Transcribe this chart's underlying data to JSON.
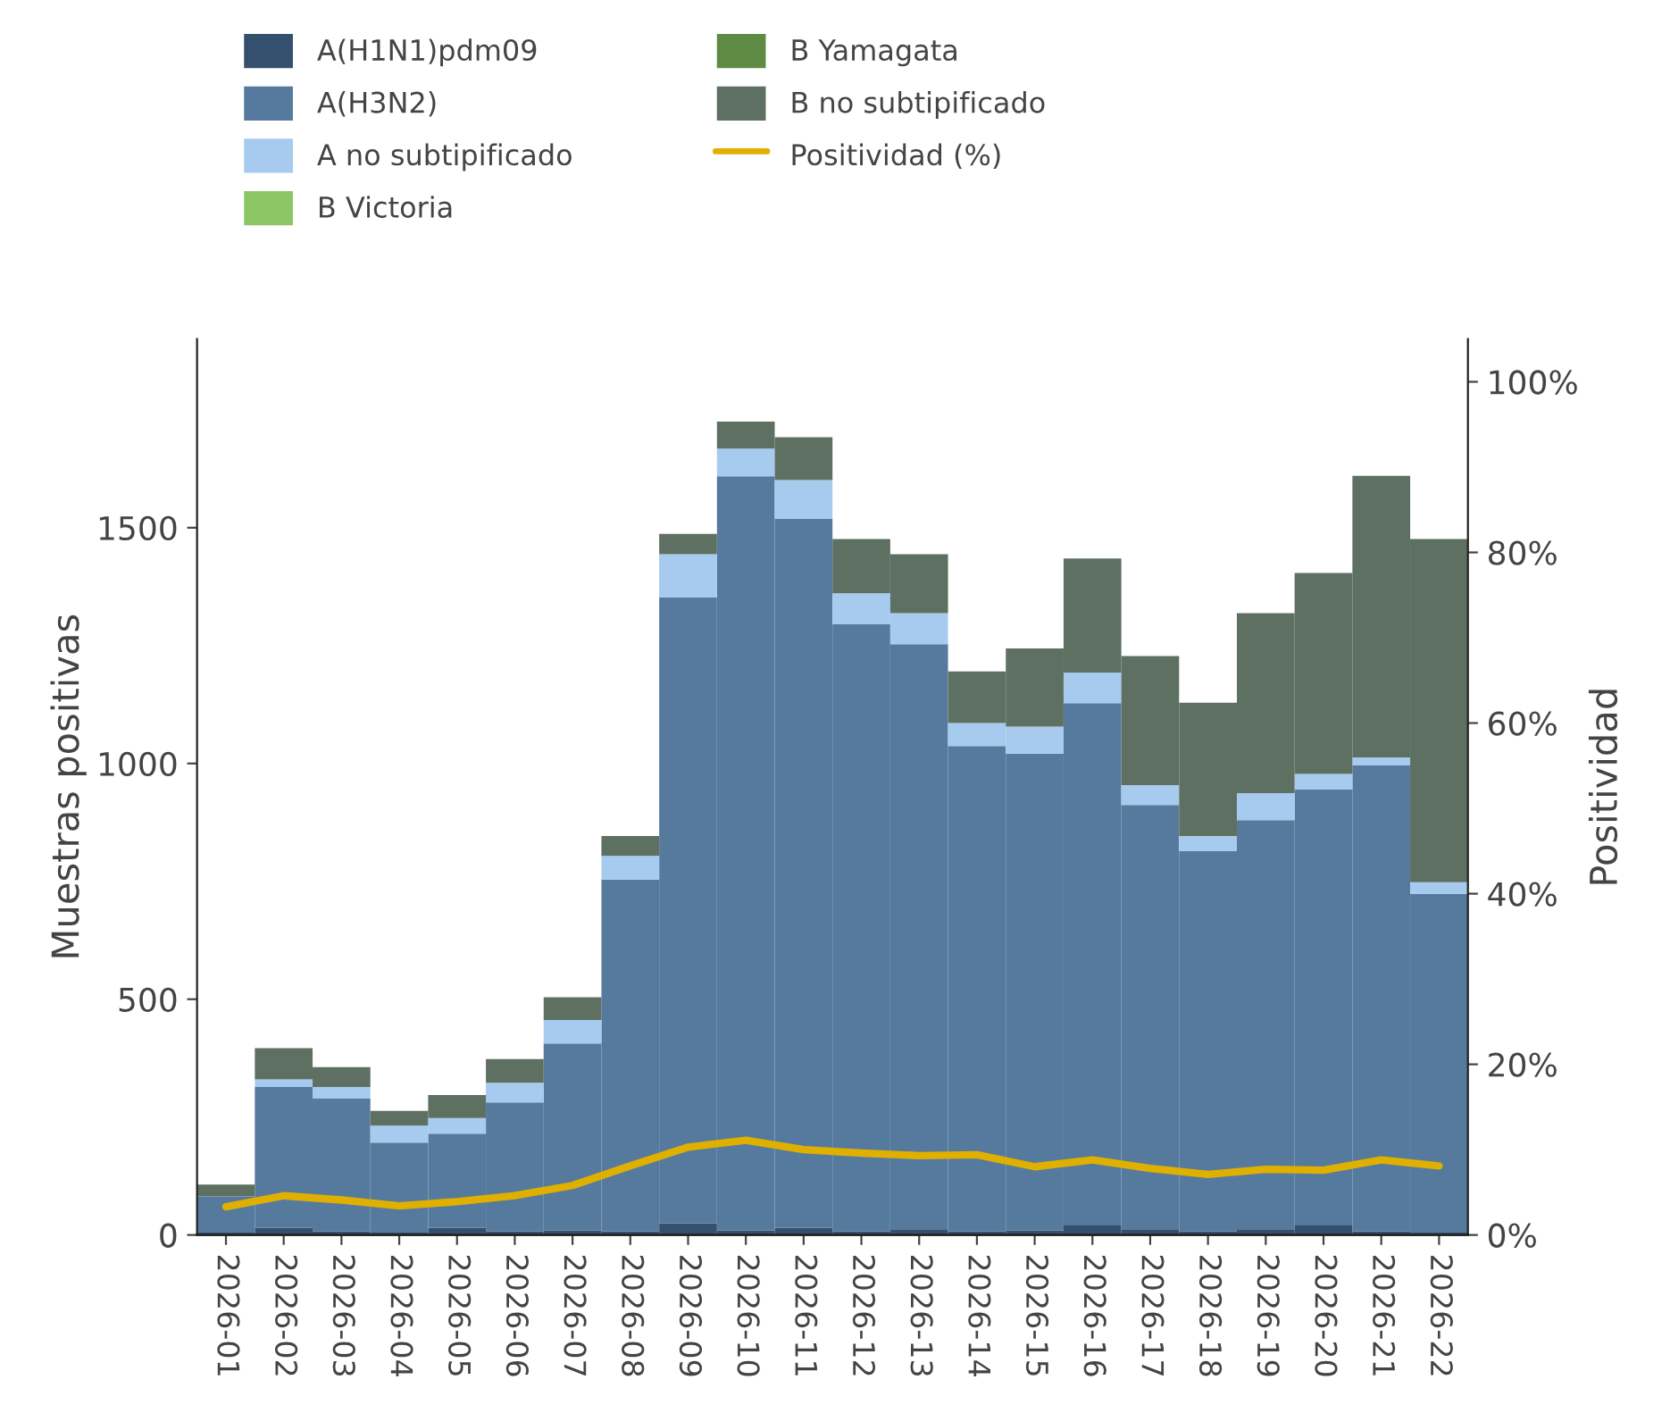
{
  "chart_data": {
    "type": "bar",
    "stacked": true,
    "ylabel": "Muestras positivas",
    "y2label": "Positividad",
    "categories": [
      "2026-01",
      "2026-02",
      "2026-03",
      "2026-04",
      "2026-05",
      "2026-06",
      "2026-07",
      "2026-08",
      "2026-09",
      "2026-10",
      "2026-11",
      "2026-12",
      "2026-13",
      "2026-14",
      "2026-15",
      "2026-16",
      "2026-17",
      "2026-18",
      "2026-19",
      "2026-20",
      "2026-21",
      "2026-22"
    ],
    "series": [
      {
        "name": "A(H1N1)pdm09",
        "color": "#34506e",
        "values": [
          5,
          15,
          8,
          5,
          15,
          8,
          10,
          8,
          25,
          10,
          15,
          8,
          12,
          8,
          10,
          20,
          12,
          8,
          12,
          20,
          8,
          5
        ]
      },
      {
        "name": "A(H3N2)",
        "color": "#557a9e",
        "values": [
          77,
          299,
          281,
          191,
          200,
          273,
          396,
          746,
          1327,
          1599,
          1504,
          1287,
          1241,
          1029,
          1011,
          1108,
          900,
          806,
          868,
          925,
          988,
          718
        ]
      },
      {
        "name": "A no subtipificado",
        "color": "#a6cbef",
        "values": [
          0,
          16,
          25,
          36,
          33,
          42,
          50,
          50,
          92,
          59,
          82,
          66,
          66,
          49,
          57,
          65,
          42,
          32,
          57,
          33,
          17,
          25
        ]
      },
      {
        "name": "B Victoria",
        "color": "#8cc665",
        "values": [
          0,
          0,
          0,
          0,
          0,
          0,
          0,
          0,
          0,
          0,
          0,
          0,
          0,
          0,
          0,
          0,
          0,
          0,
          0,
          0,
          0,
          0
        ]
      },
      {
        "name": "B Yamagata",
        "color": "#5f8a44",
        "values": [
          0,
          0,
          0,
          0,
          0,
          0,
          0,
          0,
          0,
          0,
          0,
          0,
          0,
          0,
          0,
          0,
          0,
          0,
          0,
          0,
          0,
          0
        ]
      },
      {
        "name": "B no subtipificado",
        "color": "#5e7062",
        "values": [
          25,
          66,
          42,
          31,
          49,
          50,
          48,
          42,
          43,
          57,
          91,
          115,
          125,
          109,
          166,
          242,
          274,
          283,
          382,
          426,
          597,
          728
        ]
      },
      {
        "name": "Positividad (%)",
        "color": "#e0b000",
        "type": "line",
        "axis": "y2",
        "values": [
          3.3,
          4.6,
          4.1,
          3.4,
          3.9,
          4.6,
          5.8,
          8.1,
          10.3,
          11.1,
          10.0,
          9.6,
          9.3,
          9.4,
          8.0,
          8.8,
          7.8,
          7.1,
          7.7,
          7.6,
          8.8,
          8.1
        ]
      }
    ],
    "ylim": [
      0,
      1900
    ],
    "yticks": [
      0,
      500,
      1000,
      1500
    ],
    "y2lim": [
      0,
      105
    ],
    "y2ticks": [
      {
        "value": 0,
        "label": "0%"
      },
      {
        "value": 20,
        "label": "20%"
      },
      {
        "value": 40,
        "label": "40%"
      },
      {
        "value": 60,
        "label": "60%"
      },
      {
        "value": 80,
        "label": "80%"
      },
      {
        "value": 100,
        "label": "100%"
      }
    ],
    "grid": false,
    "legend": "top",
    "marker": "none",
    "line_style": "solid"
  }
}
